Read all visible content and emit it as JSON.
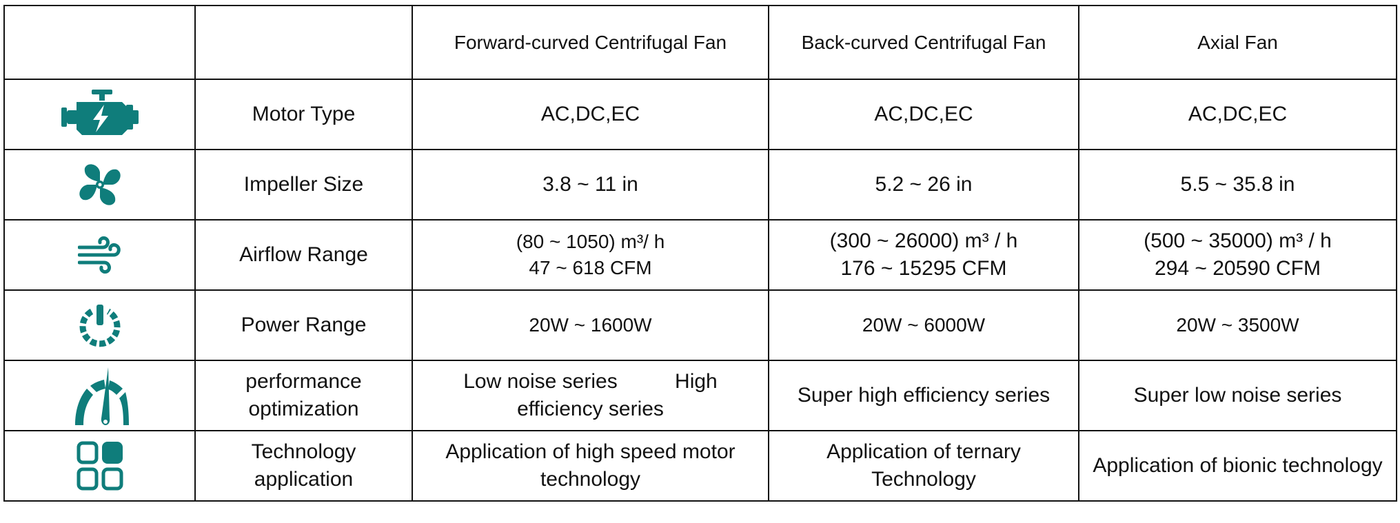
{
  "header": {
    "col1": "",
    "col2": "",
    "col3": "Forward-curved Centrifugal Fan",
    "col4": "Back-curved Centrifugal Fan",
    "col5": "Axial Fan"
  },
  "icon_color": "#0f7d7b",
  "rows": [
    {
      "icon": "engine-icon",
      "label": [
        "Motor Type"
      ],
      "forward": [
        "AC,DC,EC"
      ],
      "back": [
        "AC,DC,EC"
      ],
      "axial": [
        "AC,DC,EC"
      ]
    },
    {
      "icon": "fan-icon",
      "label": [
        "Impeller Size"
      ],
      "forward": [
        "3.8 ~ 11 in"
      ],
      "back": [
        "5.2 ~ 26 in"
      ],
      "axial": [
        "5.5 ~ 35.8 in"
      ]
    },
    {
      "icon": "wind-icon",
      "label": [
        "Airflow Range"
      ],
      "forward": [
        "(80 ~ 1050) m³/ h",
        "47 ~ 618 CFM"
      ],
      "back": [
        "(300 ~ 26000) m³ / h",
        "176 ~ 15295 CFM"
      ],
      "axial": [
        "(500 ~ 35000) m³ / h",
        "294 ~ 20590 CFM"
      ]
    },
    {
      "icon": "power-icon",
      "label": [
        "Power Range"
      ],
      "forward": [
        "20W ~ 1600W"
      ],
      "back": [
        "20W ~ 6000W"
      ],
      "axial": [
        "20W ~ 3500W"
      ]
    },
    {
      "icon": "speedometer-icon",
      "label": [
        "performance",
        "optimization"
      ],
      "forward": [
        "Low noise series          High",
        "efficiency series"
      ],
      "back": [
        "Super high efficiency series"
      ],
      "axial": [
        "Super low noise series"
      ]
    },
    {
      "icon": "apps-grid-icon",
      "label": [
        "Technology",
        "application"
      ],
      "forward": [
        "Application of high speed motor",
        "technology"
      ],
      "back": [
        "Application of ternary",
        "Technology"
      ],
      "axial": [
        "Application of bionic technology"
      ]
    }
  ]
}
